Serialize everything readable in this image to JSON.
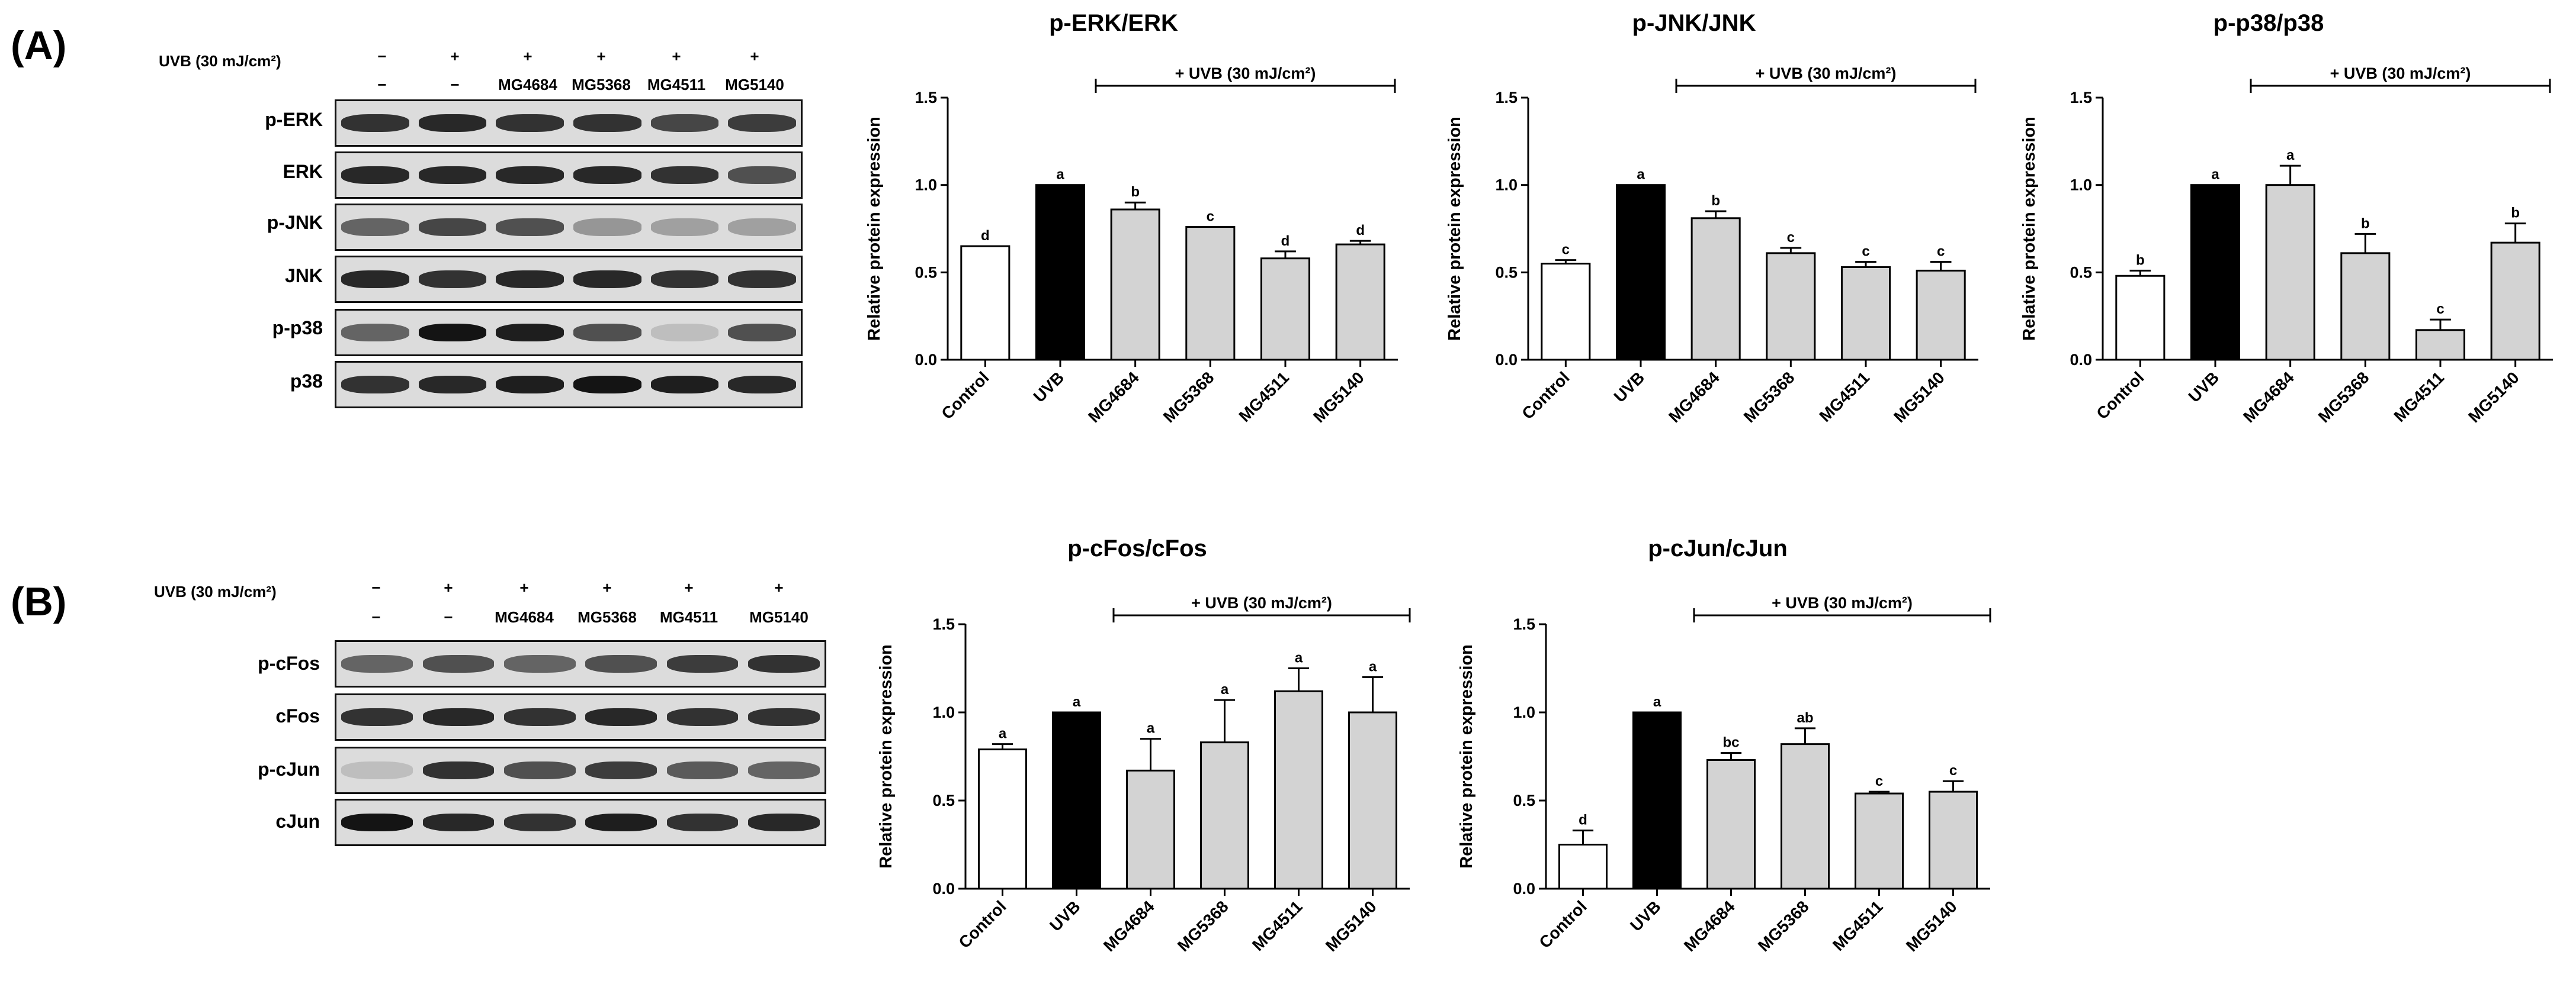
{
  "panels": {
    "A": {
      "label": "(A)",
      "uvb_row_label": "UVB (30 mJ/cm²)",
      "uvb_marks": [
        "−",
        "+",
        "+",
        "+",
        "+",
        "+"
      ],
      "sample_marks": [
        "−",
        "−",
        "MG4684",
        "MG5368",
        "MG4511",
        "MG5140"
      ],
      "blot_labels": [
        "p-ERK",
        "ERK",
        "p-JNK",
        "JNK",
        "p-p38",
        "p38"
      ]
    },
    "B": {
      "label": "(B)",
      "uvb_row_label": "UVB (30 mJ/cm²)",
      "uvb_marks": [
        "−",
        "+",
        "+",
        "+",
        "+",
        "+"
      ],
      "sample_marks": [
        "−",
        "−",
        "MG4684",
        "MG5368",
        "MG4511",
        "MG5140"
      ],
      "blot_labels": [
        "p-cFos",
        "cFos",
        "p-cJun",
        "cJun"
      ]
    }
  },
  "chart_data": [
    {
      "type": "bar",
      "title": "p-ERK/ERK",
      "bracket_label": "+ UVB (30 mJ/cm²)",
      "ylabel": "Relative protein expression",
      "ylim": [
        0,
        1.5
      ],
      "yticks": [
        "0.0",
        "0.5",
        "1.0",
        "1.5"
      ],
      "categories": [
        "Control",
        "UVB",
        "MG4684",
        "MG5368",
        "MG4511",
        "MG5140"
      ],
      "values": [
        0.65,
        1.0,
        0.86,
        0.76,
        0.58,
        0.66
      ],
      "errors": [
        0.0,
        0.0,
        0.04,
        0.0,
        0.04,
        0.02
      ],
      "letters": [
        "d",
        "a",
        "b",
        "c",
        "d",
        "d"
      ],
      "colors": [
        "#ffffff",
        "#000000",
        "#d3d3d3",
        "#d3d3d3",
        "#d3d3d3",
        "#d3d3d3"
      ]
    },
    {
      "type": "bar",
      "title": "p-JNK/JNK",
      "bracket_label": "+ UVB (30 mJ/cm²)",
      "ylabel": "Relative protein expression",
      "ylim": [
        0,
        1.5
      ],
      "yticks": [
        "0.0",
        "0.5",
        "1.0",
        "1.5"
      ],
      "categories": [
        "Control",
        "UVB",
        "MG4684",
        "MG5368",
        "MG4511",
        "MG5140"
      ],
      "values": [
        0.55,
        1.0,
        0.81,
        0.61,
        0.53,
        0.51
      ],
      "errors": [
        0.02,
        0.0,
        0.04,
        0.03,
        0.03,
        0.05
      ],
      "letters": [
        "c",
        "a",
        "b",
        "c",
        "c",
        "c"
      ],
      "colors": [
        "#ffffff",
        "#000000",
        "#d3d3d3",
        "#d3d3d3",
        "#d3d3d3",
        "#d3d3d3"
      ]
    },
    {
      "type": "bar",
      "title": "p-p38/p38",
      "bracket_label": "+ UVB (30 mJ/cm²)",
      "ylabel": "Relative protein expression",
      "ylim": [
        0,
        1.5
      ],
      "yticks": [
        "0.0",
        "0.5",
        "1.0",
        "1.5"
      ],
      "categories": [
        "Control",
        "UVB",
        "MG4684",
        "MG5368",
        "MG4511",
        "MG5140"
      ],
      "values": [
        0.48,
        1.0,
        1.0,
        0.61,
        0.17,
        0.67
      ],
      "errors": [
        0.03,
        0.0,
        0.11,
        0.11,
        0.06,
        0.11
      ],
      "letters": [
        "b",
        "a",
        "a",
        "b",
        "c",
        "b"
      ],
      "colors": [
        "#ffffff",
        "#000000",
        "#d3d3d3",
        "#d3d3d3",
        "#d3d3d3",
        "#d3d3d3"
      ]
    },
    {
      "type": "bar",
      "title": "p-cFos/cFos",
      "bracket_label": "+ UVB (30 mJ/cm²)",
      "ylabel": "Relative protein expression",
      "ylim": [
        0,
        1.5
      ],
      "yticks": [
        "0.0",
        "0.5",
        "1.0",
        "1.5"
      ],
      "categories": [
        "Control",
        "UVB",
        "MG4684",
        "MG5368",
        "MG4511",
        "MG5140"
      ],
      "values": [
        0.79,
        1.0,
        0.67,
        0.83,
        1.12,
        1.0
      ],
      "errors": [
        0.03,
        0.0,
        0.18,
        0.24,
        0.13,
        0.2
      ],
      "letters": [
        "a",
        "a",
        "a",
        "a",
        "a",
        "a"
      ],
      "colors": [
        "#ffffff",
        "#000000",
        "#d3d3d3",
        "#d3d3d3",
        "#d3d3d3",
        "#d3d3d3"
      ]
    },
    {
      "type": "bar",
      "title": "p-cJun/cJun",
      "bracket_label": "+ UVB (30 mJ/cm²)",
      "ylabel": "Relative protein expression",
      "ylim": [
        0,
        1.5
      ],
      "yticks": [
        "0.0",
        "0.5",
        "1.0",
        "1.5"
      ],
      "categories": [
        "Control",
        "UVB",
        "MG4684",
        "MG5368",
        "MG4511",
        "MG5140"
      ],
      "values": [
        0.25,
        1.0,
        0.73,
        0.82,
        0.54,
        0.55
      ],
      "errors": [
        0.08,
        0.0,
        0.04,
        0.09,
        0.01,
        0.06
      ],
      "letters": [
        "d",
        "a",
        "bc",
        "ab",
        "c",
        "c"
      ],
      "colors": [
        "#ffffff",
        "#000000",
        "#d3d3d3",
        "#d3d3d3",
        "#d3d3d3",
        "#d3d3d3"
      ]
    }
  ]
}
